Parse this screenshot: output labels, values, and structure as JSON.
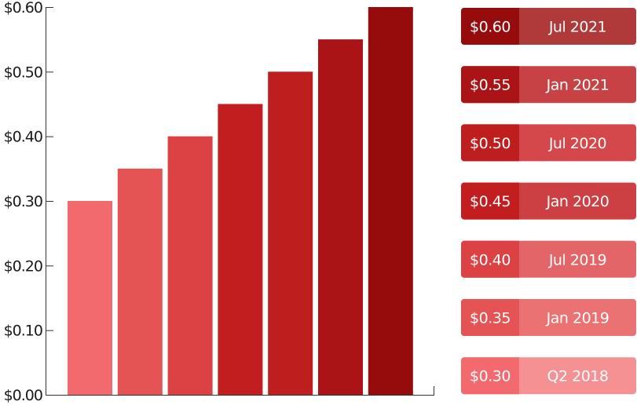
{
  "chart_data": {
    "type": "bar",
    "categories": [
      "Q2 2018",
      "Jan 2019",
      "Jul 2019",
      "Jan 2020",
      "Jul 2020",
      "Jan 2021",
      "Jul 2021"
    ],
    "values": [
      0.3,
      0.35,
      0.4,
      0.45,
      0.5,
      0.55,
      0.6
    ],
    "value_labels": [
      "$0.30",
      "$0.35",
      "$0.40",
      "$0.45",
      "$0.50",
      "$0.55",
      "$0.60"
    ],
    "ylim": [
      0,
      0.6
    ],
    "yticks": [
      0,
      0.1,
      0.2,
      0.3,
      0.4,
      0.5,
      0.6
    ],
    "ytick_labels": [
      "$0.00",
      "$0.10",
      "$0.20",
      "$0.30",
      "$0.40",
      "$0.50",
      "$0.60"
    ],
    "grid": false,
    "legend_placement": "right",
    "bar_colors": [
      "#f26a6d",
      "#e55454",
      "#dc4244",
      "#c21e1f",
      "#bf1e1e",
      "#aa1416",
      "#960b0b"
    ],
    "legend_label_colors": [
      "#f59093",
      "#ea7273",
      "#e46567",
      "#cc4043",
      "#d4474a",
      "#c74244",
      "#b03a3a"
    ]
  }
}
